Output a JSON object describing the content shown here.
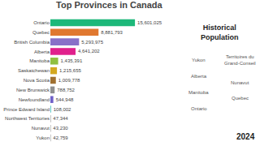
{
  "chart_data": {
    "type": "bar",
    "orientation": "horizontal",
    "title": "Top Provinces in Canada",
    "categories": [
      "Ontario",
      "Quebec",
      "British Columbia",
      "Alberta",
      "Manitoba",
      "Saskatchewan",
      "Nova Scotia",
      "New Brunswick",
      "Newfoundland",
      "Prince Edward Island",
      "Northwest Territories",
      "Nunavut",
      "Yukon"
    ],
    "values": [
      15601025,
      8881793,
      5293975,
      4641202,
      1435391,
      1215655,
      1009778,
      788752,
      544948,
      108002,
      47344,
      43230,
      42759
    ],
    "value_labels": [
      "15,601,025",
      "8,881,793",
      "5,293,975",
      "4,641,202",
      "1,435,391",
      "1,215,655",
      "1,009,778",
      "788,752",
      "544,948",
      "108,002",
      "47,344",
      "43,230",
      "42,759"
    ],
    "colors": [
      "#1db87a",
      "#e07830",
      "#8870c8",
      "#e0208c",
      "#90c040",
      "#d4a820",
      "#a07030",
      "#909090",
      "#7060c8",
      "#20b0b0",
      "#404040",
      "#404040",
      "#404040"
    ],
    "data_labels": true,
    "xlim": [
      0,
      19033250.5
    ],
    "tick_labels": "y",
    "grid": false,
    "annotations": [
      "Historical\nPopulation",
      "2024",
      "Yukon",
      "Territoires du\nGrand-Conseil",
      "Nunavut",
      "Alberta",
      "Manitoba",
      "Ontario",
      "Quebec"
    ]
  }
}
